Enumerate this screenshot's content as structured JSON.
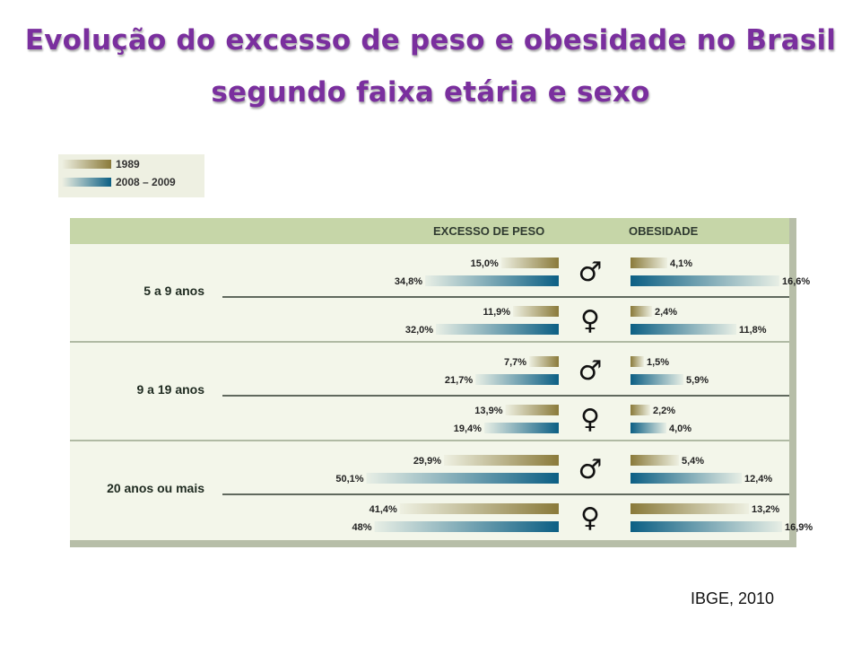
{
  "title": {
    "line1": "Evolução do excesso de peso e obesidade no Brasil",
    "line2": "segundo faixa etária e sexo"
  },
  "legend": {
    "items": [
      {
        "label": "1989",
        "color": "#8a7a3a"
      },
      {
        "label": "2008 – 2009",
        "color": "#0c5f84"
      }
    ]
  },
  "headers": {
    "excess": "EXCESSO DE PESO",
    "obesity": "OBESIDADE"
  },
  "source": "IBGE, 2010",
  "colors": {
    "y1989": "#8a7a3a",
    "y2009": "#0c5f84"
  },
  "chart_data": {
    "type": "bar",
    "title": "Evolução do excesso de peso e obesidade no Brasil segundo faixa etária e sexo",
    "series": [
      {
        "name": "1989"
      },
      {
        "name": "2008 – 2009"
      }
    ],
    "groups": [
      {
        "label": "5 a 9 anos",
        "rows": [
          {
            "sex": "male",
            "excess": {
              "v1989": 15.0,
              "t1989": "15,0",
              "v2009": 34.8,
              "t2009": "34,8"
            },
            "obesity": {
              "v1989": 4.1,
              "t1989": "4,1",
              "v2009": 16.6,
              "t2009": "16,6"
            }
          },
          {
            "sex": "female",
            "excess": {
              "v1989": 11.9,
              "t1989": "11,9",
              "v2009": 32.0,
              "t2009": "32,0"
            },
            "obesity": {
              "v1989": 2.4,
              "t1989": "2,4",
              "v2009": 11.8,
              "t2009": "11,8"
            }
          }
        ]
      },
      {
        "label": "9 a 19 anos",
        "rows": [
          {
            "sex": "male",
            "excess": {
              "v1989": 7.7,
              "t1989": "7,7",
              "v2009": 21.7,
              "t2009": "21,7"
            },
            "obesity": {
              "v1989": 1.5,
              "t1989": "1,5",
              "v2009": 5.9,
              "t2009": "5,9"
            }
          },
          {
            "sex": "female",
            "excess": {
              "v1989": 13.9,
              "t1989": "13,9",
              "v2009": 19.4,
              "t2009": "19,4"
            },
            "obesity": {
              "v1989": 2.2,
              "t1989": "2,2",
              "v2009": 4.0,
              "t2009": "4,0"
            }
          }
        ]
      },
      {
        "label": "20 anos ou mais",
        "rows": [
          {
            "sex": "male",
            "excess": {
              "v1989": 29.9,
              "t1989": "29,9",
              "v2009": 50.1,
              "t2009": "50,1"
            },
            "obesity": {
              "v1989": 5.4,
              "t1989": "5,4",
              "v2009": 12.4,
              "t2009": "12,4"
            }
          },
          {
            "sex": "female",
            "excess": {
              "v1989": 41.4,
              "t1989": "41,4",
              "v2009": 48,
              "t2009": "48"
            },
            "obesity": {
              "v1989": 13.2,
              "t1989": "13,2",
              "v2009": 16.9,
              "t2009": "16,9"
            }
          }
        ]
      }
    ],
    "unit": "%",
    "excess_xlim": [
      0,
      55
    ],
    "obesity_xlim": [
      0,
      18
    ]
  }
}
